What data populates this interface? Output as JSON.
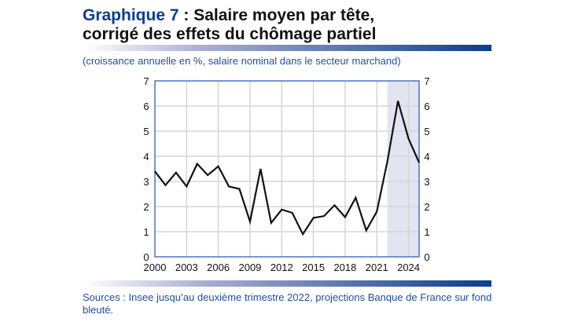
{
  "header": {
    "title_number": "Graphique 7",
    "title_rest": " : Salaire moyen par tête,",
    "title_line2": "corrigé des effets du chômage partiel",
    "subtitle": "(croissance annuelle en %, salaire nominal dans le secteur marchand)"
  },
  "footer": {
    "sources": "Sources : Insee jusqu’au deuxième trimestre 2022, projections Banque de France sur fond bleuté."
  },
  "colors": {
    "accent": "#0c3d8c",
    "shade": "#e3e4f1",
    "line": "#111111",
    "frame": "#4a76b8"
  },
  "chart_data": {
    "type": "line",
    "x": [
      2000,
      2001,
      2002,
      2003,
      2004,
      2005,
      2006,
      2007,
      2008,
      2009,
      2010,
      2011,
      2012,
      2013,
      2014,
      2015,
      2016,
      2017,
      2018,
      2019,
      2020,
      2021,
      2022,
      2023,
      2024,
      2025
    ],
    "values": [
      3.4,
      2.85,
      3.35,
      2.8,
      3.7,
      3.25,
      3.6,
      2.8,
      2.7,
      1.4,
      3.5,
      1.35,
      1.88,
      1.75,
      0.9,
      1.55,
      1.62,
      2.05,
      1.58,
      2.35,
      1.05,
      1.8,
      3.8,
      6.2,
      4.7,
      3.75
    ],
    "xlim": [
      2000,
      2025
    ],
    "ylim": [
      0,
      7
    ],
    "xticks": [
      "2000",
      "2003",
      "2006",
      "2009",
      "2012",
      "2015",
      "2018",
      "2021",
      "2024"
    ],
    "yticks": [
      "0",
      "1",
      "2",
      "3",
      "4",
      "5",
      "6",
      "7"
    ],
    "projection_shading": [
      2022,
      2025
    ],
    "grid": true
  }
}
